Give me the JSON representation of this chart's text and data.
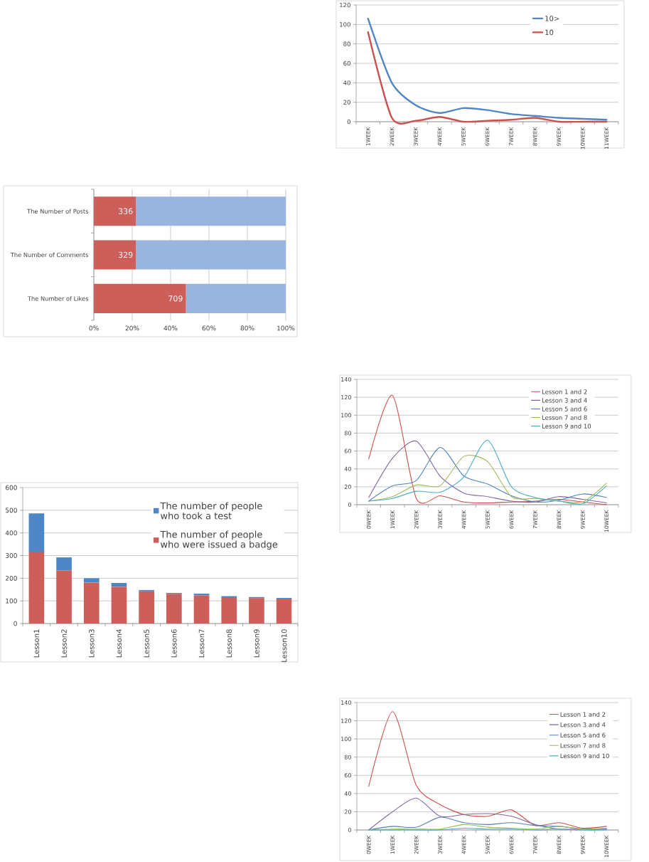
{
  "chart_data": [
    {
      "type": "line",
      "categories": [
        "1WEEK",
        "2WEEK",
        "3WEEK",
        "4WEEK",
        "5WEEK",
        "6WEEK",
        "7WEEK",
        "8WEEK",
        "9WEEK",
        "10WEEK",
        "11WEEK"
      ],
      "series": [
        {
          "name": "10>",
          "color": "#4f86c6",
          "values": [
            106,
            40,
            17,
            9,
            14,
            12,
            8,
            6,
            4,
            3,
            2
          ]
        },
        {
          "name": "10",
          "color": "#c9524e",
          "values": [
            92,
            4,
            1,
            5,
            0,
            1,
            2,
            4,
            0,
            0,
            0
          ]
        }
      ],
      "ylim": [
        0,
        120
      ],
      "yticks": [
        0,
        20,
        40,
        60,
        80,
        100,
        120
      ],
      "grid": "y",
      "legend": "top right"
    },
    {
      "type": "bar",
      "orientation": "horizontal",
      "stacked": true,
      "categories": [
        "The Number of Posts",
        "The Number of Comments",
        "The Number of Likes"
      ],
      "series": [
        {
          "color": "#cd5f5a",
          "values": [
            22,
            22,
            48
          ]
        },
        {
          "color": "#98b6dd",
          "values": [
            78,
            78,
            52
          ]
        }
      ],
      "xlim": [
        0,
        100
      ],
      "xticks": [
        {
          "value": 0,
          "label": "0%"
        },
        {
          "value": 20,
          "label": "20%"
        },
        {
          "value": 40,
          "label": "40%"
        },
        {
          "value": 60,
          "label": "60%"
        },
        {
          "value": 80,
          "label": "80%"
        },
        {
          "value": 100,
          "label": "100%"
        }
      ],
      "grid": "x",
      "annotations": [
        "336",
        "329",
        "709"
      ]
    },
    {
      "type": "line",
      "categories": [
        "0WEEK",
        "1WEEK",
        "2WEEK",
        "3WEEK",
        "4WEEK",
        "5WEEK",
        "6WEEK",
        "7WEEK",
        "8WEEK",
        "9WEEK",
        "10WEEK"
      ],
      "series": [
        {
          "name": "Lesson 1 and 2",
          "color": "#c9524e",
          "values": [
            51,
            122,
            7,
            10,
            3,
            2,
            3,
            4,
            6,
            3,
            0
          ]
        },
        {
          "name": "Lesson 3 and 4",
          "color": "#8064a2",
          "values": [
            8,
            52,
            71,
            32,
            13,
            9,
            4,
            3,
            9,
            6,
            2
          ]
        },
        {
          "name": "Lesson 5 and 6",
          "color": "#4f81bd",
          "values": [
            4,
            21,
            27,
            64,
            32,
            23,
            10,
            3,
            5,
            12,
            8
          ]
        },
        {
          "name": "Lesson 7 and 8",
          "color": "#9bbb59",
          "values": [
            4,
            9,
            22,
            21,
            54,
            48,
            9,
            7,
            4,
            3,
            24
          ]
        },
        {
          "name": "Lesson 9 and 10",
          "color": "#4bacc6",
          "values": [
            4,
            7,
            15,
            14,
            31,
            72,
            20,
            8,
            4,
            1,
            21
          ]
        }
      ],
      "ylim": [
        0,
        140
      ],
      "yticks": [
        0,
        20,
        40,
        60,
        80,
        100,
        120,
        140
      ],
      "grid": "y",
      "legend": "top right"
    },
    {
      "type": "bar",
      "stacked": true,
      "categories": [
        "Lesson1",
        "Lesson2",
        "Lesson3",
        "Lesson4",
        "Lesson5",
        "Lesson6",
        "Lesson7",
        "Lesson8",
        "Lesson9",
        "Lesson10"
      ],
      "series": [
        {
          "name": "The number of people who were issued a badge",
          "color": "#cd5f5a",
          "values": [
            317,
            235,
            181,
            162,
            142,
            131,
            124,
            113,
            112,
            110
          ]
        },
        {
          "name": "The number of people who took a test",
          "color": "#4f86c6",
          "values": [
            169,
            57,
            19,
            17,
            6,
            4,
            8,
            8,
            5,
            3
          ]
        }
      ],
      "ylim": [
        0,
        600
      ],
      "yticks": [
        0,
        100,
        200,
        300,
        400,
        500,
        600
      ],
      "grid": "y",
      "legend": "top right"
    },
    {
      "type": "line",
      "categories": [
        "0WEEK",
        "1WEEK",
        "2WEEK",
        "3WEEK",
        "4WEEK",
        "5WEEK",
        "6WEEK",
        "7WEEK",
        "8WEEK",
        "9WEEK",
        "10WEEK"
      ],
      "series": [
        {
          "name": "Lesson 1 and 2",
          "color": "#c9524e",
          "values": [
            48,
            130,
            49,
            28,
            17,
            15,
            22,
            5,
            8,
            2,
            4
          ]
        },
        {
          "name": "Lesson 3 and 4",
          "color": "#8064a2",
          "values": [
            0,
            20,
            35,
            15,
            17,
            18,
            15,
            6,
            1,
            1,
            1
          ]
        },
        {
          "name": "Lesson 5 and 6",
          "color": "#4f81bd",
          "values": [
            0,
            4,
            3,
            14,
            8,
            6,
            8,
            5,
            4,
            1,
            1
          ]
        },
        {
          "name": "Lesson 7 and 8",
          "color": "#9bbb59",
          "values": [
            0,
            1,
            1,
            1,
            6,
            3,
            2,
            1,
            4,
            1,
            2
          ]
        },
        {
          "name": "Lesson 9 and 10",
          "color": "#4bacc6",
          "values": [
            0,
            0,
            0,
            0,
            2,
            1,
            1,
            0,
            1,
            0,
            0
          ]
        }
      ],
      "ylim": [
        0,
        140
      ],
      "yticks": [
        0,
        20,
        40,
        60,
        80,
        100,
        120,
        140
      ],
      "grid": "y",
      "legend": "top right"
    }
  ]
}
